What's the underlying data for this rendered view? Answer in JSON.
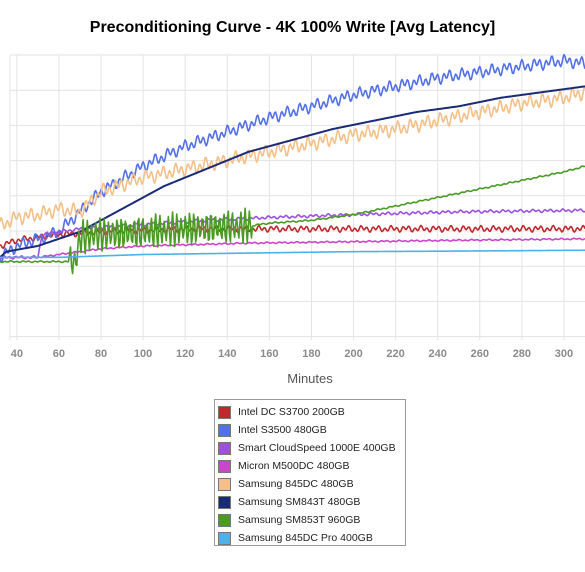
{
  "chart_data": {
    "type": "line",
    "title": "Preconditioning Curve - 4K 100% Write [Avg Latency]",
    "xlabel": "Minutes",
    "ylabel": "",
    "xlim": [
      32,
      310
    ],
    "ylim": [
      0,
      100
    ],
    "x_ticks": [
      "40",
      "60",
      "80",
      "100",
      "120",
      "140",
      "160",
      "180",
      "200",
      "220",
      "240",
      "260",
      "280",
      "300"
    ],
    "grid": true,
    "legend_position": "bottom",
    "series": [
      {
        "name": "Intel DC S3700 200GB",
        "color": "#c0282d",
        "x": [
          32,
          40,
          60,
          80,
          100,
          120,
          140,
          160,
          200,
          240,
          280,
          310
        ],
        "y": [
          33,
          35,
          37,
          38,
          38.5,
          39,
          39,
          39,
          39,
          39,
          39,
          39
        ],
        "noise": 1.2
      },
      {
        "name": "Intel S3500 480GB",
        "color": "#5470e6",
        "x": [
          32,
          40,
          60,
          80,
          100,
          120,
          140,
          160,
          180,
          200,
          220,
          240,
          260,
          280,
          300,
          310
        ],
        "y": [
          29,
          33,
          38,
          52,
          61,
          68,
          73,
          78,
          82,
          86,
          89,
          92,
          94,
          96,
          98,
          97
        ],
        "noise": 2.4
      },
      {
        "name": "Smart CloudSpeed 1000E 400GB",
        "color": "#9d50e0",
        "x": [
          32,
          50,
          52,
          70,
          100,
          130,
          160,
          200,
          250,
          310
        ],
        "y": [
          29,
          29,
          37,
          39,
          40.5,
          42,
          43,
          44,
          45,
          45.5
        ],
        "noise": 0.6
      },
      {
        "name": "Micron M500DC 480GB",
        "color": "#cc44cc",
        "x": [
          32,
          50,
          60,
          80,
          100,
          150,
          200,
          250,
          310
        ],
        "y": [
          29,
          29,
          30,
          32,
          33,
          34,
          34.5,
          35,
          35.5
        ],
        "noise": 0.3
      },
      {
        "name": "Samsung 845DC 480GB",
        "color": "#f2c088",
        "x": [
          32,
          40,
          50,
          60,
          70,
          80,
          100,
          120,
          140,
          160,
          180,
          200,
          220,
          240,
          260,
          280,
          300,
          310
        ],
        "y": [
          40,
          43,
          44,
          46,
          45,
          52,
          57,
          60,
          63,
          66,
          69,
          72,
          74,
          77,
          80,
          83,
          85,
          87
        ],
        "noise": 2.8
      },
      {
        "name": "Samsung SM843T 480GB",
        "color": "#1a2a78",
        "x": [
          32,
          35,
          50,
          70,
          90,
          110,
          130,
          150,
          170,
          190,
          210,
          230,
          250,
          270,
          290,
          310
        ],
        "y": [
          29,
          31,
          33,
          38,
          46,
          54,
          60,
          66,
          70,
          74,
          77,
          80,
          82,
          85,
          87,
          89
        ],
        "noise": 0
      },
      {
        "name": "Samsung SM853T 960GB",
        "color": "#4a9a24",
        "x": [
          32,
          68,
          70,
          80,
          100,
          120,
          150,
          160,
          180,
          200,
          220,
          240,
          260,
          280,
          300,
          310
        ],
        "y": [
          27.5,
          27.5,
          36,
          37,
          38,
          39,
          40,
          41,
          42,
          44,
          47,
          50,
          53,
          56,
          59,
          61
        ],
        "noise": 0.3,
        "oscillation": {
          "from": 65,
          "to": 152,
          "amplitude": 6
        }
      },
      {
        "name": "Samsung 845DC Pro 400GB",
        "color": "#4ab2ea",
        "x": [
          32,
          60,
          80,
          100,
          150,
          200,
          250,
          310
        ],
        "y": [
          29,
          29,
          29.5,
          30,
          30.5,
          31,
          31.2,
          31.5
        ],
        "noise": 0
      }
    ]
  }
}
